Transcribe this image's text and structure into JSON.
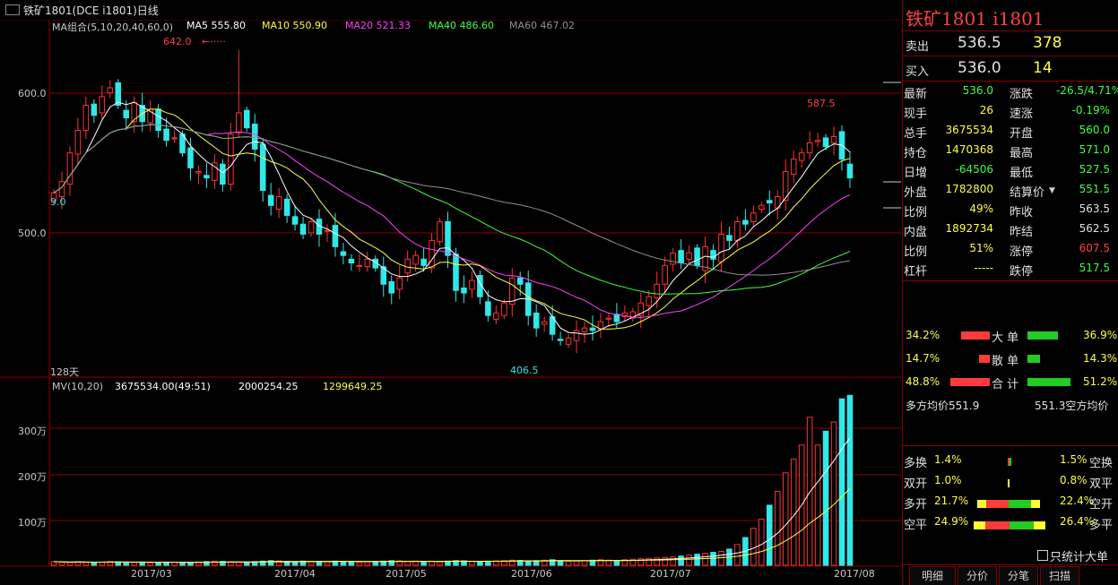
{
  "window": {
    "title": "铁矿1801(DCE i1801)日线"
  },
  "ma_legend": {
    "group": "MA组合(5,10,20,40,60,0)",
    "ma5": "MA5 555.80",
    "ma10": "MA10 550.90",
    "ma20": "MA20 521.33",
    "ma40": "MA40 486.60",
    "ma60": "MA60 467.02"
  },
  "annotations": {
    "high_label": "642.0",
    "recent_high": "587.5",
    "low_label": "406.5",
    "left_clip": "9.0",
    "days": "128天"
  },
  "volume_legend": {
    "mv": "MV(10,20)",
    "v1": "3675534.00(49:51)",
    "v2": "2000254.25",
    "v3": "1299649.25"
  },
  "colors": {
    "up": "#ff3232",
    "down": "#30e8e8",
    "ma5": "#ffffff",
    "ma10": "#ffff40",
    "ma20": "#ff40ff",
    "ma40": "#40ff40",
    "ma60": "#909090",
    "grid": "#8b0000"
  },
  "chart_data": [
    {
      "type": "candlestick",
      "title": "铁矿1801(DCE i1801)日线",
      "x_ticks": [
        "2017/03",
        "2017/04",
        "2017/05",
        "2017/06",
        "2017/07",
        "2017/08"
      ],
      "y_ticks": [
        "600.0",
        "500.0"
      ],
      "ylim": [
        385,
        655
      ],
      "close": [
        528,
        537,
        560,
        578,
        598,
        590,
        605,
        612,
        598,
        588,
        600,
        585,
        595,
        578,
        570,
        572,
        560,
        548,
        545,
        540,
        552,
        535,
        575,
        592,
        580,
        563,
        530,
        518,
        525,
        510,
        503,
        495,
        505,
        495,
        498,
        485,
        478,
        472,
        470,
        475,
        468,
        455,
        448,
        460,
        475,
        478,
        470,
        490,
        505,
        478,
        450,
        448,
        458,
        445,
        430,
        432,
        440,
        460,
        455,
        430,
        420,
        425,
        415,
        410,
        412,
        418,
        420,
        418,
        425,
        428,
        425,
        432,
        433,
        440,
        445,
        455,
        470,
        480,
        472,
        480,
        470,
        485,
        475,
        495,
        490,
        505,
        503,
        512,
        518,
        520,
        525,
        545,
        555,
        560,
        568,
        570,
        565,
        573,
        555,
        540
      ]
    },
    {
      "type": "bar",
      "title": "MV(10,20)",
      "y_ticks": [
        "300万",
        "200万",
        "100万"
      ],
      "ylim": [
        0,
        3700000
      ],
      "values": [
        80000,
        70000,
        60000,
        75000,
        65000,
        60000,
        70000,
        80000,
        75000,
        60000,
        65000,
        70000,
        55000,
        60000,
        70000,
        65000,
        60000,
        55000,
        70000,
        80000,
        90000,
        85000,
        75000,
        70000,
        65000,
        80000,
        90000,
        100000,
        95000,
        85000,
        80000,
        90000,
        85000,
        80000,
        75000,
        90000,
        85000,
        80000,
        70000,
        75000,
        80000,
        90000,
        100000,
        95000,
        85000,
        90000,
        80000,
        85000,
        75000,
        90000,
        100000,
        95000,
        85000,
        80000,
        90000,
        95000,
        100000,
        110000,
        105000,
        95000,
        100000,
        110000,
        120000,
        100000,
        90000,
        95000,
        100000,
        110000,
        120000,
        110000,
        100000,
        120000,
        130000,
        140000,
        150000,
        160000,
        170000,
        180000,
        200000,
        220000,
        240000,
        260000,
        280000,
        300000,
        350000,
        450000,
        600000,
        800000,
        1000000,
        1300000,
        1600000,
        2000000,
        2300000,
        2600000,
        3200000,
        2600000,
        2900000,
        3100000,
        3600000,
        3675534
      ]
    }
  ],
  "quote": {
    "name": "铁矿1801  i1801",
    "sell_label": "卖出",
    "sell_price": "536.5",
    "sell_vol": "378",
    "buy_label": "买入",
    "buy_price": "536.0",
    "buy_vol": "14",
    "rows": [
      {
        "k1": "最新",
        "v1": "536.0",
        "k2": "涨跌",
        "v2": "-26.5/4.71%"
      },
      {
        "k1": "现手",
        "v1": "26",
        "k2": "速涨",
        "v2": "-0.19%"
      },
      {
        "k1": "总手",
        "v1": "3675534",
        "k2": "开盘",
        "v2": "560.0"
      },
      {
        "k1": "持仓",
        "v1": "1470368",
        "k2": "最高",
        "v2": "571.0"
      },
      {
        "k1": "日增",
        "v1": "-64506",
        "k2": "最低",
        "v2": "527.5"
      },
      {
        "k1": "外盘",
        "v1": "1782800",
        "k2": "结算价",
        "v2": "551.5"
      },
      {
        "k1": "比例",
        "v1": "49%",
        "k2": "昨收",
        "v2": "563.5"
      },
      {
        "k1": "内盘",
        "v1": "1892734",
        "k2": "昨结",
        "v2": "562.5"
      },
      {
        "k1": "比例",
        "v1": "51%",
        "k2": "涨停",
        "v2": "607.5"
      },
      {
        "k1": "杠杆",
        "v1": "-----",
        "k2": "跌停",
        "v2": "517.5"
      }
    ]
  },
  "flow": {
    "big": {
      "left": "34.2%",
      "label": "大 单",
      "right": "36.9%"
    },
    "retail": {
      "left": "14.7%",
      "label": "散 单",
      "right": "14.3%"
    },
    "total": {
      "left": "48.8%",
      "label": "合 计",
      "right": "51.2%"
    },
    "avg_long": "多方均价551.9",
    "avg_short": "551.3空方均价"
  },
  "open_close": [
    {
      "k1": "多换",
      "v1": "1.4%",
      "v2": "1.5%",
      "k2": "空换"
    },
    {
      "k1": "双开",
      "v1": "1.0%",
      "v2": "0.8%",
      "k2": "双平"
    },
    {
      "k1": "多开",
      "v1": "21.7%",
      "v2": "22.4%",
      "k2": "空开"
    },
    {
      "k1": "空平",
      "v1": "24.9%",
      "v2": "26.4%",
      "k2": "多平"
    }
  ],
  "checkbox_label": "只统计大单",
  "tabs": [
    "明细",
    "分价",
    "分笔",
    "扫描"
  ]
}
